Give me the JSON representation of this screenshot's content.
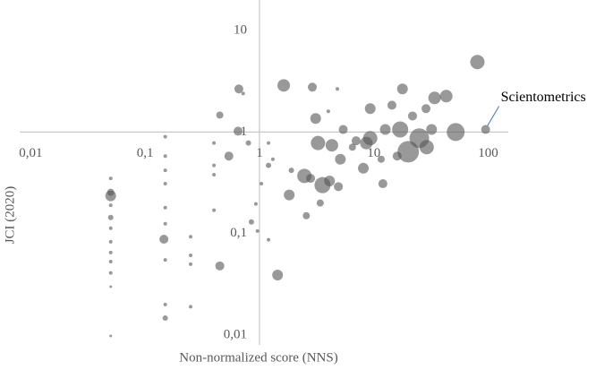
{
  "chart_data": {
    "type": "bubble",
    "xlabel": "Non-normalized score (NNS)",
    "ylabel": "JCI (2020)",
    "xscale": "log",
    "yscale": "log",
    "xlim": [
      0.008,
      150
    ],
    "ylim": [
      0.008,
      20
    ],
    "axis_crossing": {
      "x": 1,
      "y": 1
    },
    "xticks": [
      {
        "value": 0.01,
        "label": "0,01"
      },
      {
        "value": 0.1,
        "label": "0,1"
      },
      1,
      10,
      100
    ],
    "yticks": [
      {
        "value": 0.01,
        "label": "0,01"
      },
      {
        "value": 0.1,
        "label": "0,1"
      },
      1,
      10
    ],
    "annotation": "Scientometrics",
    "series": [
      {
        "color": "#555555",
        "x": [
          80.5,
          95,
          52,
          20,
          25,
          17,
          29,
          32,
          43,
          34,
          17.8,
          14.4,
          12.6,
          9.3,
          8.6,
          7.0,
          8.1,
          9.3,
          5.4,
          4.3,
          5.1,
          3.25,
          3.1,
          2.9,
          1.63,
          0.66,
          0.45,
          0.65,
          0.54,
          2.47,
          3.56,
          4.1,
          4.9,
          1.82,
          2.8,
          2.57,
          3.4,
          12,
          1.44,
          0.45,
          0.146,
          0.05,
          0.05,
          1.2,
          1.04,
          0.96,
          0.85,
          1.31,
          0.15,
          0.25,
          0.05,
          0.05,
          0.05,
          0.05,
          0.05,
          0.05,
          0.05,
          0.05,
          0.05,
          0.05,
          0.15,
          0.15,
          0.15,
          0.15,
          0.15,
          0.15,
          0.15,
          0.15,
          0.25,
          0.25,
          0.25,
          0.4,
          0.4,
          0.4,
          0.4,
          1.2,
          0.93,
          0.8,
          1.2,
          1.9,
          0.72,
          4.8,
          4.0,
          6.5,
          16,
          11.6,
          21.8,
          28.6
        ],
        "values": [
          4.9,
          1.06,
          1.0,
          0.64,
          0.87,
          1.06,
          0.71,
          1.06,
          2.26,
          2.17,
          2.66,
          1.84,
          1.06,
          0.87,
          0.78,
          0.82,
          0.44,
          1.7,
          1.06,
          0.74,
          0.54,
          0.78,
          1.36,
          2.77,
          2.88,
          2.66,
          1.47,
          1.02,
          0.58,
          0.37,
          0.3,
          0.33,
          0.29,
          0.24,
          0.35,
          0.15,
          0.2,
          0.31,
          0.039,
          0.048,
          0.088,
          0.235,
          0.255,
          0.47,
          0.31,
          0.106,
          0.13,
          0.54,
          0.0147,
          0.019,
          0.0098,
          0.03,
          0.144,
          0.083,
          0.35,
          0.19,
          0.113,
          0.065,
          0.053,
          0.041,
          0.9,
          0.58,
          0.42,
          0.31,
          0.18,
          0.125,
          0.055,
          0.02,
          0.061,
          0.05,
          0.093,
          0.78,
          0.47,
          0.38,
          0.17,
          0.087,
          0.196,
          0.78,
          0.78,
          0.42,
          2.4,
          2.66,
          1.6,
          0.71,
          0.58,
          0.54,
          1.44,
          1.7
        ],
        "sizes": [
          8,
          5,
          10,
          12,
          11,
          9,
          8,
          6,
          7,
          7,
          6,
          5,
          6,
          8,
          7,
          5,
          6,
          6,
          5,
          7,
          6,
          8,
          6,
          5,
          7,
          5,
          4,
          5,
          5,
          8,
          9,
          6,
          5,
          6,
          5,
          4,
          4,
          5,
          6,
          5,
          5,
          6,
          4,
          3,
          2,
          2,
          3,
          2,
          3,
          2,
          1.5,
          1.5,
          3,
          2,
          2,
          2,
          2,
          2,
          2,
          2,
          2,
          2,
          2,
          2,
          2,
          2,
          2,
          2,
          2,
          2,
          2,
          2,
          2,
          2,
          2,
          2,
          2,
          3,
          2,
          3,
          2,
          2,
          2,
          4,
          5,
          4,
          5,
          5
        ]
      }
    ]
  }
}
